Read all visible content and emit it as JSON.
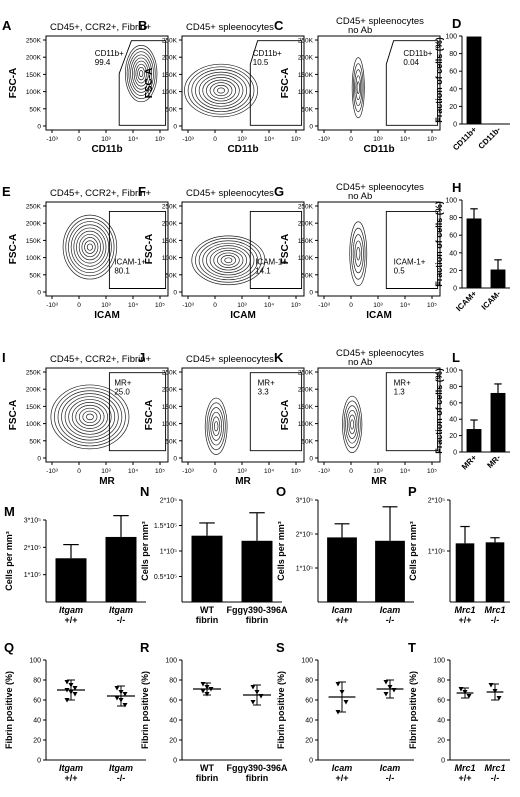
{
  "flow_rows": [
    {
      "panels": [
        {
          "letter": "A",
          "title": "CD45+, CCR2+, Fibrin+",
          "title2": "",
          "gate": "CD11b+",
          "value": "99.4",
          "xlabel": "CD11b",
          "ylabel": "FSC-A"
        },
        {
          "letter": "B",
          "title": "CD45+ spleenocytes",
          "title2": "",
          "gate": "CD11b+",
          "value": "10.5",
          "xlabel": "CD11b",
          "ylabel": "FSC-A"
        },
        {
          "letter": "C",
          "title": "CD45+ spleenocytes",
          "title2": "no Ab",
          "gate": "CD11b+",
          "value": "0.04",
          "xlabel": "CD11b",
          "ylabel": "FSC-A"
        }
      ]
    },
    {
      "panels": [
        {
          "letter": "E",
          "title": "CD45+, CCR2+, Fibrin+",
          "title2": "",
          "gate": "ICAM-1+",
          "value": "80.1",
          "xlabel": "ICAM",
          "ylabel": "FSC-A"
        },
        {
          "letter": "F",
          "title": "CD45+ spleenocytes",
          "title2": "",
          "gate": "ICAM-1+",
          "value": "14.1",
          "xlabel": "ICAM",
          "ylabel": "FSC-A"
        },
        {
          "letter": "G",
          "title": "CD45+ spleenocytes",
          "title2": "no Ab",
          "gate": "ICAM-1+",
          "value": "0.5",
          "xlabel": "ICAM",
          "ylabel": "FSC-A"
        }
      ]
    },
    {
      "panels": [
        {
          "letter": "I",
          "title": "CD45+, CCR2+, Fibrin+",
          "title2": "",
          "gate": "MR+",
          "value": "25.0",
          "xlabel": "MR",
          "ylabel": "FSC-A"
        },
        {
          "letter": "J",
          "title": "CD45+ spleenocytes",
          "title2": "",
          "gate": "MR+",
          "value": "3.3",
          "xlabel": "MR",
          "ylabel": "FSC-A"
        },
        {
          "letter": "K",
          "title": "CD45+ spleenocytes",
          "title2": "no Ab",
          "gate": "MR+",
          "value": "1.3",
          "xlabel": "MR",
          "ylabel": "FSC-A"
        }
      ]
    }
  ],
  "flow_axes": {
    "y_ticks": [
      "250K",
      "200K",
      "150K",
      "100K",
      "50K",
      "0"
    ],
    "x_ticks": [
      "-10³",
      "0",
      "10³",
      "10⁴",
      "10⁵"
    ]
  },
  "chart_data": [
    {
      "letter": "D",
      "type": "bar",
      "ylabel": "Fraction of cells (%)",
      "categories": [
        "CD11b+",
        "CD11b-"
      ],
      "values": [
        99.4,
        0.6
      ],
      "errors": [
        0,
        0
      ],
      "ylim": [
        0,
        100
      ],
      "yticks": [
        0,
        20,
        40,
        60,
        80,
        100
      ]
    },
    {
      "letter": "H",
      "type": "bar",
      "ylabel": "Fraction of cells (%)",
      "categories": [
        "ICAM+",
        "ICAM-"
      ],
      "values": [
        79,
        21
      ],
      "errors": [
        11,
        11
      ],
      "ylim": [
        0,
        100
      ],
      "yticks": [
        0,
        20,
        40,
        60,
        80,
        100
      ]
    },
    {
      "letter": "L",
      "type": "bar",
      "ylabel": "Fraction of cells (%)",
      "categories": [
        "MR+",
        "MR-"
      ],
      "values": [
        28,
        72
      ],
      "errors": [
        11,
        11
      ],
      "ylim": [
        0,
        100
      ],
      "yticks": [
        0,
        20,
        40,
        60,
        80,
        100
      ]
    },
    {
      "letter": "M",
      "type": "bar",
      "ylabel": "Cells per mm³",
      "categories": [
        "Itgam +/+",
        "Itgam -/-"
      ],
      "values": [
        160000,
        238000
      ],
      "errors": [
        50000,
        78000
      ],
      "ylim": [
        0,
        300000
      ],
      "yticks": [
        "1*10⁵",
        "2*10⁵",
        "3*10⁵"
      ]
    },
    {
      "letter": "N",
      "type": "bar",
      "ylabel": "Cells per mm³",
      "categories": [
        "WT fibrin",
        "Fggγ390-396A fibrin"
      ],
      "values": [
        130000,
        120000
      ],
      "errors": [
        25000,
        55000
      ],
      "ylim": [
        0,
        200000
      ],
      "yticks": [
        "0.5*10⁵",
        "1*10⁵",
        "1.5*10⁵",
        "2*10⁵"
      ]
    },
    {
      "letter": "O",
      "type": "bar",
      "ylabel": "Cells per mm³",
      "categories": [
        "Icam +/+",
        "Icam -/-"
      ],
      "values": [
        190000,
        180000
      ],
      "errors": [
        40000,
        100000
      ],
      "ylim": [
        0,
        300000
      ],
      "yticks": [
        "1*10⁵",
        "2*10⁵",
        "3*10⁵"
      ]
    },
    {
      "letter": "P",
      "type": "bar",
      "ylabel": "Cells per mm³",
      "categories": [
        "Mrc1 +/+",
        "Mrc1 -/-"
      ],
      "values": [
        115000,
        117000
      ],
      "errors": [
        33000,
        9000
      ],
      "ylim": [
        0,
        200000
      ],
      "yticks": [
        "1*10⁵",
        "2*10⁵"
      ]
    },
    {
      "letter": "Q",
      "type": "scatter",
      "ylabel": "Fibrin positive (%)",
      "categories": [
        "Itgam +/+",
        "Itgam -/-"
      ],
      "means": [
        70,
        64
      ],
      "errors": [
        10,
        10
      ],
      "points": [
        [
          78,
          75,
          72,
          70,
          68,
          66,
          60
        ],
        [
          72,
          68,
          66,
          62,
          60,
          55
        ]
      ],
      "ylim": [
        0,
        100
      ],
      "yticks": [
        0,
        20,
        40,
        60,
        80,
        100
      ]
    },
    {
      "letter": "R",
      "type": "scatter",
      "ylabel": "Fibrin positive (%)",
      "categories": [
        "WT fibrin",
        "Fggγ390-396A fibrin"
      ],
      "means": [
        71,
        65
      ],
      "errors": [
        6,
        10
      ],
      "points": [
        [
          76,
          73,
          71,
          69,
          66
        ],
        [
          73,
          68,
          64,
          58
        ]
      ],
      "ylim": [
        0,
        100
      ],
      "yticks": [
        0,
        20,
        40,
        60,
        80,
        100
      ]
    },
    {
      "letter": "S",
      "type": "scatter",
      "ylabel": "Fibrin positive (%)",
      "categories": [
        "Icam +/+",
        "Icam -/-"
      ],
      "means": [
        63,
        71
      ],
      "errors": [
        15,
        9
      ],
      "points": [
        [
          76,
          68,
          58,
          48
        ],
        [
          78,
          73,
          70,
          66
        ]
      ],
      "ylim": [
        0,
        100
      ],
      "yticks": [
        0,
        20,
        40,
        60,
        80,
        100
      ]
    },
    {
      "letter": "T",
      "type": "scatter",
      "ylabel": "Fibrin positive (%)",
      "categories": [
        "Mrc1 +/+",
        "Mrc1 -/-"
      ],
      "means": [
        67,
        68
      ],
      "errors": [
        5,
        8
      ],
      "points": [
        [
          71,
          68,
          64
        ],
        [
          75,
          69,
          62
        ]
      ],
      "ylim": [
        0,
        100
      ],
      "yticks": [
        0,
        20,
        40,
        60,
        80,
        100
      ]
    }
  ]
}
